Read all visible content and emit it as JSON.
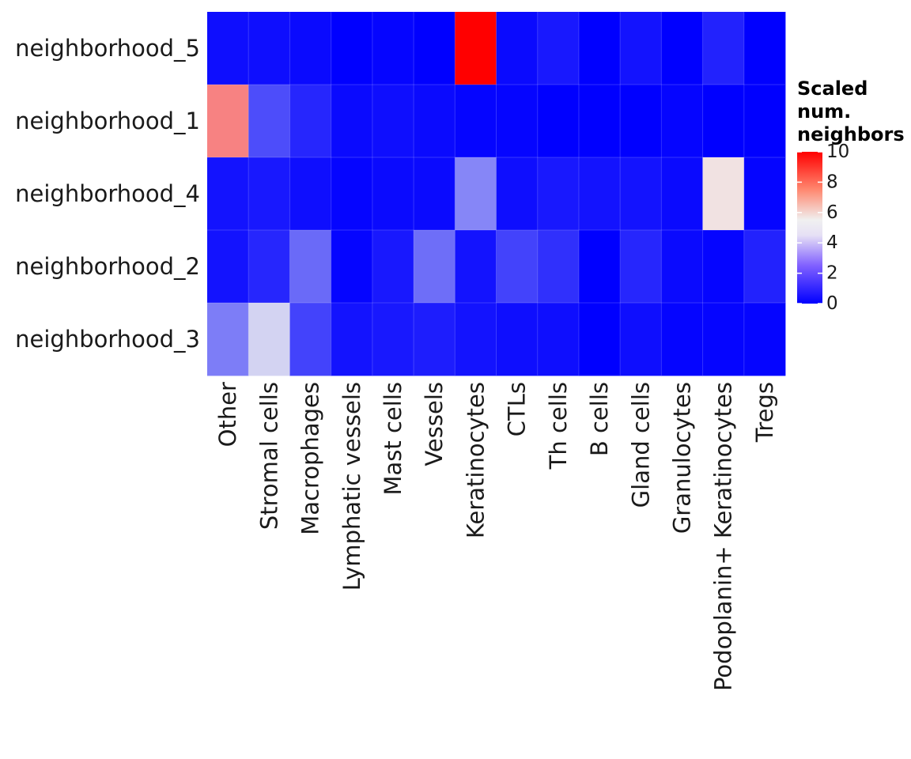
{
  "chart_data": {
    "type": "heatmap",
    "title": "",
    "xlabel": "",
    "ylabel": "",
    "rows": [
      "neighborhood_5",
      "neighborhood_1",
      "neighborhood_4",
      "neighborhood_2",
      "neighborhood_3"
    ],
    "columns": [
      "Other",
      "Stromal cells",
      "Macrophages",
      "Lymphatic vessels",
      "Mast cells",
      "Vessels",
      "Keratinocytes",
      "CTLs",
      "Th cells",
      "B cells",
      "Gland cells",
      "Granulocytes",
      "Podoplanin+ Keratinocytes",
      "Tregs"
    ],
    "values": [
      [
        0.3,
        0.3,
        0.2,
        0.0,
        0.1,
        0.0,
        10.0,
        0.2,
        0.5,
        0.0,
        0.4,
        0.0,
        0.7,
        0.0
      ],
      [
        7.3,
        1.6,
        0.8,
        0.2,
        0.3,
        0.2,
        0.1,
        0.1,
        0.0,
        0.0,
        0.0,
        0.1,
        0.0,
        0.0
      ],
      [
        0.4,
        0.5,
        0.3,
        0.1,
        0.2,
        0.2,
        2.8,
        0.3,
        0.5,
        0.4,
        0.4,
        0.2,
        5.3,
        0.1
      ],
      [
        0.4,
        0.8,
        2.2,
        0.1,
        0.5,
        2.3,
        0.4,
        1.4,
        1.0,
        0.0,
        0.8,
        0.2,
        0.1,
        0.7
      ],
      [
        2.6,
        4.4,
        1.4,
        0.4,
        0.5,
        0.6,
        0.4,
        0.3,
        0.3,
        0.0,
        0.3,
        0.1,
        0.1,
        0.1
      ]
    ],
    "colorscale": {
      "low": "#0000ff",
      "mid": "#f0f0f0",
      "high": "#ff0000",
      "min": 0,
      "max": 10
    },
    "legend": {
      "title_lines": [
        "Scaled",
        "num.",
        "neighbors"
      ],
      "ticks": [
        "10",
        "8",
        "6",
        "4",
        "2",
        "0"
      ],
      "tick_values": [
        10,
        8,
        6,
        4,
        2,
        0
      ],
      "placement": "right"
    }
  }
}
